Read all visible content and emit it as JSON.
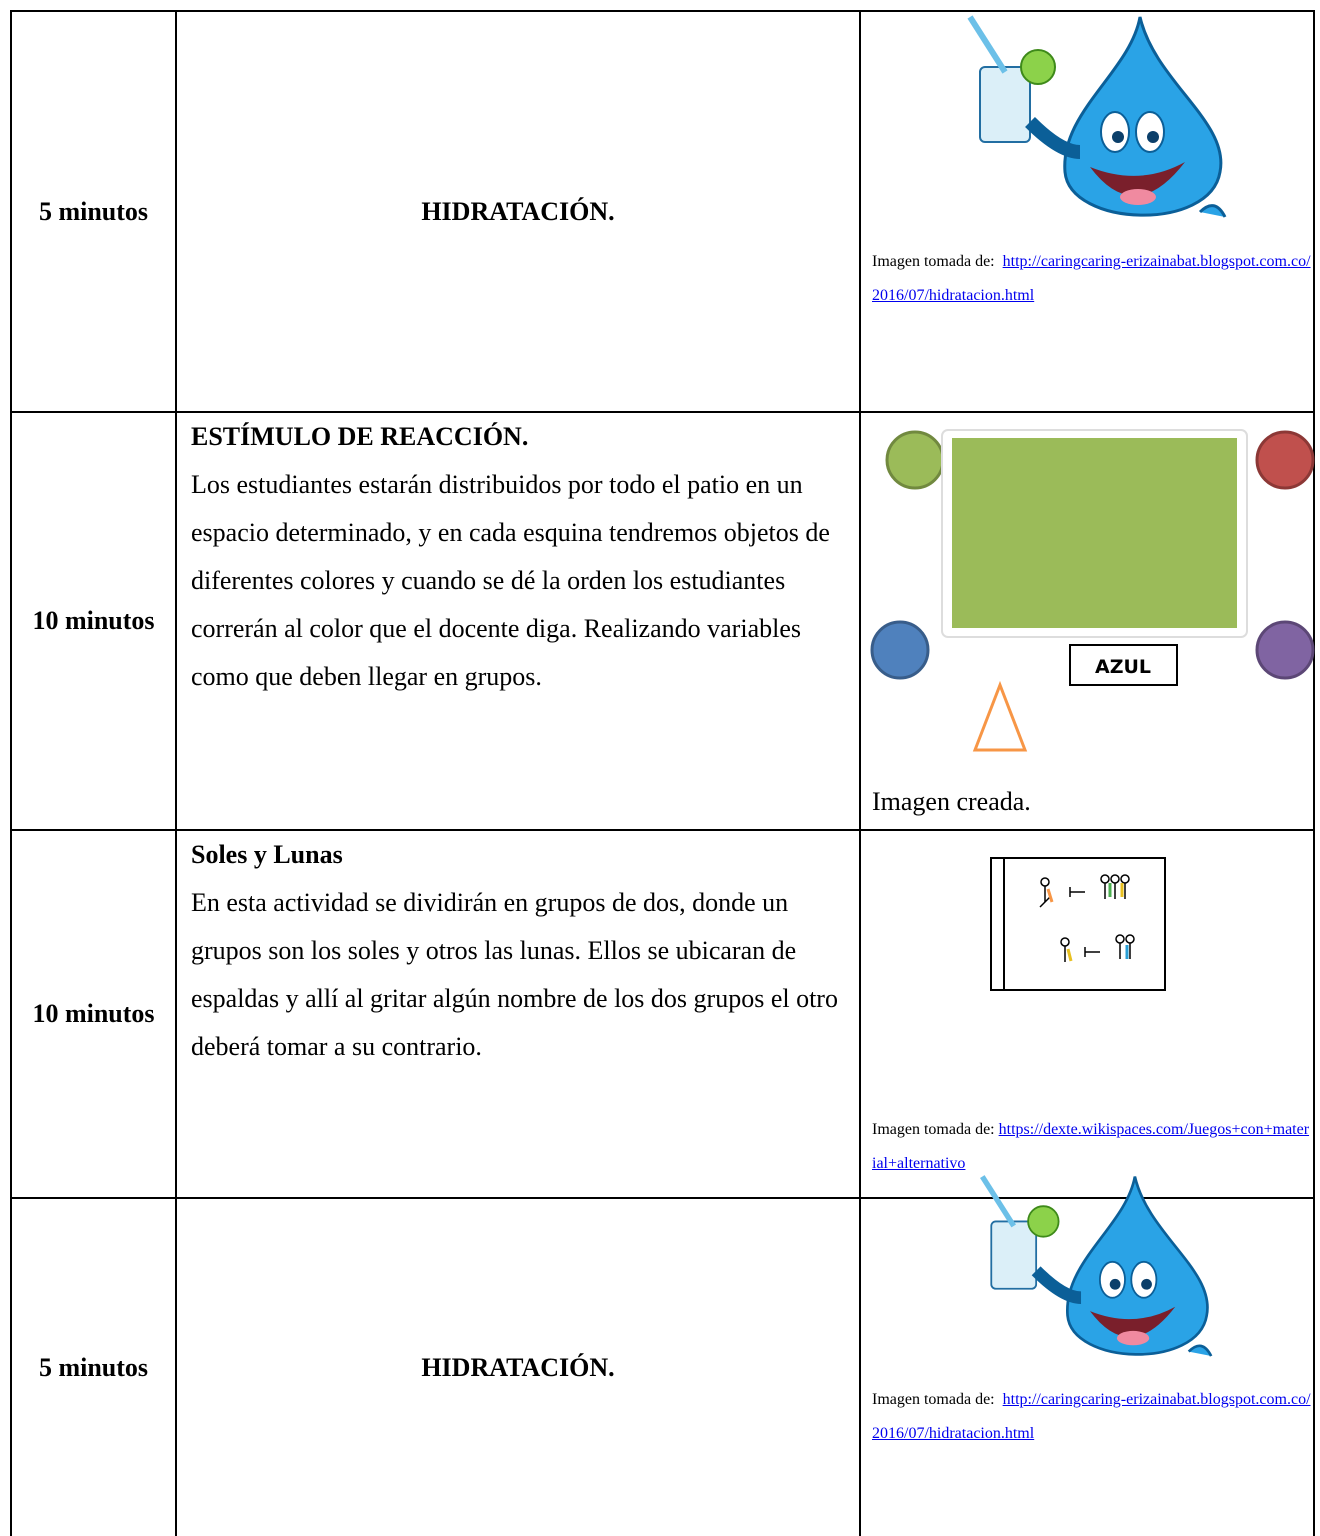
{
  "table": {
    "rows": [
      {
        "time": "5 minutos",
        "title": "HIDRATACIÓN.",
        "caption_prefix": "Imagen tomada de:",
        "link": "http://caringcaring-erizainabat.blogspot.com.co/2016/07/hidratacion.html"
      },
      {
        "time": "10 minutos",
        "title": "ESTÍMULO DE REACCIÓN.",
        "description": "Los estudiantes estarán distribuidos por todo el patio en un espacio determinado, y en cada esquina tendremos objetos de diferentes colores y cuando se dé la orden los estudiantes correrán al color que el docente diga.  Realizando variables como que deben llegar en grupos.",
        "image_label": "AZUL",
        "caption": "Imagen creada."
      },
      {
        "time": "10 minutos",
        "title": "Soles y Lunas",
        "description": "En esta actividad se dividirán en grupos de dos, donde un grupos son los soles y otros las lunas. Ellos se ubicaran de espaldas y allí al gritar algún nombre de los dos grupos el otro deberá tomar a su contrario.",
        "caption_prefix": "Imagen tomada de:",
        "link": "https://dexte.wikispaces.com/Juegos+con+material+alternativo"
      },
      {
        "time": "5 minutos",
        "title": "HIDRATACIÓN.",
        "caption_prefix": "Imagen tomada de:",
        "link": "http://caringcaring-erizainabat.blogspot.com.co/2016/07/hidratacion.html"
      }
    ]
  }
}
